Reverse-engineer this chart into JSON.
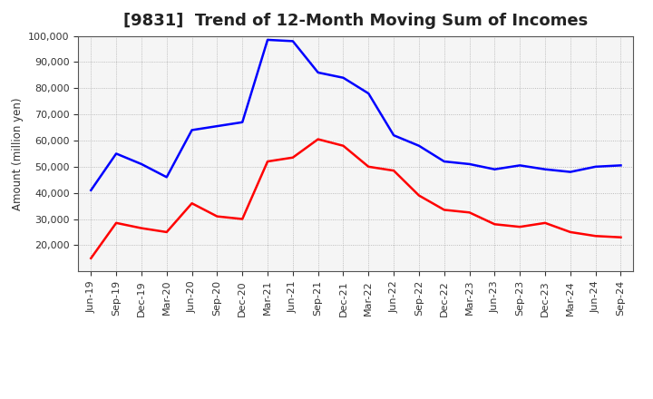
{
  "title": "[9831]  Trend of 12-Month Moving Sum of Incomes",
  "ylabel": "Amount (million yen)",
  "background_color": "#ffffff",
  "plot_bg_color": "#f5f5f5",
  "grid_color": "#999999",
  "x_labels": [
    "Jun-19",
    "Sep-19",
    "Dec-19",
    "Mar-20",
    "Jun-20",
    "Sep-20",
    "Dec-20",
    "Mar-21",
    "Jun-21",
    "Sep-21",
    "Dec-21",
    "Mar-22",
    "Jun-22",
    "Sep-22",
    "Dec-22",
    "Mar-23",
    "Jun-23",
    "Sep-23",
    "Dec-23",
    "Mar-24",
    "Jun-24",
    "Sep-24"
  ],
  "ordinary_income": [
    41000,
    55000,
    51000,
    46000,
    64000,
    65500,
    67000,
    98500,
    98000,
    86000,
    84000,
    78000,
    62000,
    58000,
    52000,
    51000,
    49000,
    50500,
    49000,
    48000,
    50000,
    50500
  ],
  "net_income": [
    15000,
    28500,
    26500,
    25000,
    36000,
    31000,
    30000,
    52000,
    53500,
    60500,
    58000,
    50000,
    48500,
    39000,
    33500,
    32500,
    28000,
    27000,
    28500,
    25000,
    23500,
    23000
  ],
  "ordinary_color": "#0000ff",
  "net_color": "#ff0000",
  "ylim_min": 10000,
  "ylim_max": 100000,
  "yticks": [
    20000,
    30000,
    40000,
    50000,
    60000,
    70000,
    80000,
    90000,
    100000
  ],
  "line_width": 1.8,
  "title_fontsize": 13,
  "legend_fontsize": 10,
  "tick_fontsize": 8,
  "ylabel_fontsize": 8.5
}
